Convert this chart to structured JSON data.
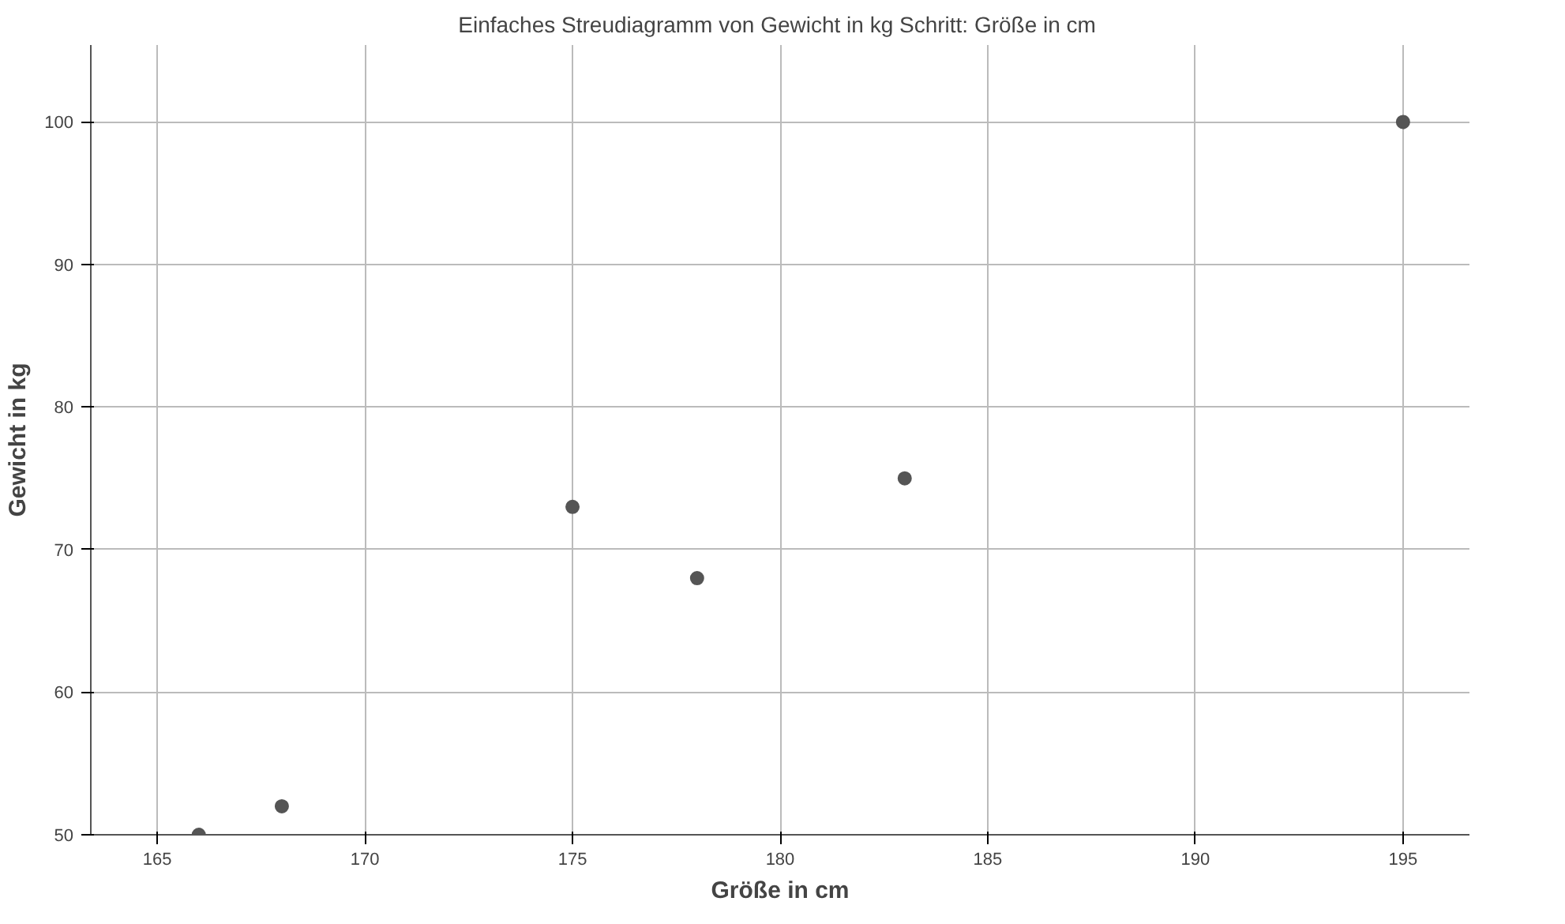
{
  "chart_data": {
    "type": "scatter",
    "title": "Einfaches Streudiagramm  von Gewicht in kg Schritt: Größe in cm",
    "xlabel": "Größe in cm",
    "ylabel": "Gewicht in kg",
    "x": [
      166,
      168,
      175,
      178,
      183,
      195
    ],
    "series": [
      {
        "color": "#555555",
        "values": [
          50,
          52,
          73,
          68,
          75,
          100
        ]
      }
    ],
    "xlim": [
      163.4,
      196.6
    ],
    "xticks": [
      165,
      170,
      175,
      180,
      185,
      190,
      195
    ],
    "ylim": [
      50,
      105.4
    ],
    "yticks": [
      50,
      60,
      70,
      80,
      90,
      100
    ],
    "grid": true,
    "marker": "circle"
  }
}
